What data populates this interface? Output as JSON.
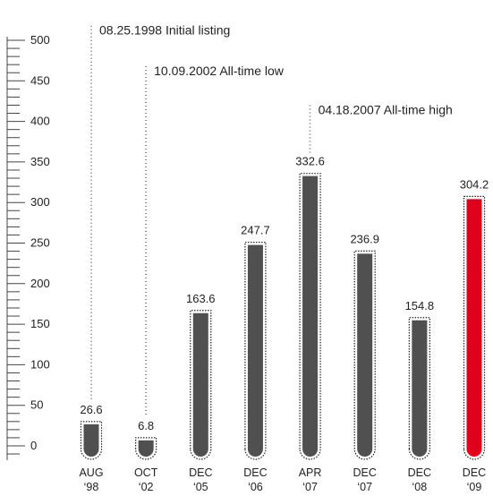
{
  "chart_data": {
    "type": "bar",
    "title": "",
    "xlabel": "",
    "ylabel": "",
    "ylim": [
      0,
      500
    ],
    "yticks": [
      0,
      50,
      100,
      150,
      200,
      250,
      300,
      350,
      400,
      450,
      500
    ],
    "grid": false,
    "categories": [
      {
        "month": "AUG",
        "year": "‘98"
      },
      {
        "month": "OCT",
        "year": "‘02"
      },
      {
        "month": "DEC",
        "year": "‘05"
      },
      {
        "month": "DEC",
        "year": "‘06"
      },
      {
        "month": "APR",
        "year": "‘07"
      },
      {
        "month": "DEC",
        "year": "‘07"
      },
      {
        "month": "DEC",
        "year": "‘08"
      },
      {
        "month": "DEC",
        "year": "‘09"
      }
    ],
    "values": [
      26.6,
      6.8,
      163.6,
      247.7,
      332.6,
      236.9,
      154.8,
      304.2
    ],
    "value_labels": [
      "26.6",
      "6.8",
      "163.6",
      "247.7",
      "332.6",
      "236.9",
      "154.8",
      "304.2"
    ],
    "highlight_index": 7,
    "colors": {
      "bar": "#505050",
      "highlight": "#e0001b",
      "outline": "#222222",
      "text": "#222222"
    },
    "annotations": [
      {
        "bar_index": 0,
        "text": "08.25.1998 Initial listing",
        "top_value": 518
      },
      {
        "bar_index": 1,
        "text": "10.09.2002 All-time low",
        "top_value": 468
      },
      {
        "bar_index": 4,
        "text": "04.18.2007 All-time high",
        "top_value": 420
      }
    ]
  }
}
